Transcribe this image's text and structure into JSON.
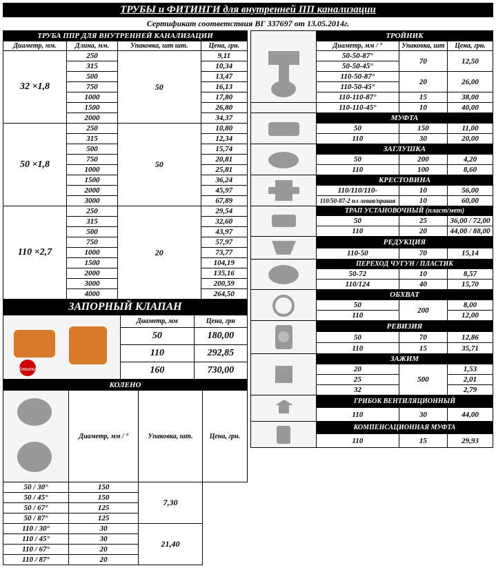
{
  "title": "ТРУБЫ и ФИТИНГИ для внутренней ПП канализации",
  "subtitle": "Сертификат соответствия ВГ 337697 от 13.05.2014г.",
  "pipes": {
    "header": "ТРУБА ППР ДЛЯ ВНУТРЕННЕЙ КАНАЛИЗАЦИИ",
    "cols": [
      "Диаметр, мм.",
      "Длина, мм.",
      "Упаковка, шт шт.",
      "Цена, грн."
    ],
    "groups": [
      {
        "dia": "32 ×1,8",
        "pack": "50",
        "rows": [
          [
            "250",
            "9,11"
          ],
          [
            "315",
            "10,34"
          ],
          [
            "500",
            "13,47"
          ],
          [
            "750",
            "16,13"
          ],
          [
            "1000",
            "17,80"
          ],
          [
            "1500",
            "26,80"
          ],
          [
            "2000",
            "34,37"
          ]
        ]
      },
      {
        "dia": "50 ×1,8",
        "pack": "50",
        "rows": [
          [
            "250",
            "10,80"
          ],
          [
            "315",
            "12,34"
          ],
          [
            "500",
            "15,74"
          ],
          [
            "750",
            "20,81"
          ],
          [
            "1000",
            "25,81"
          ],
          [
            "1500",
            "36,24"
          ],
          [
            "2000",
            "45,97"
          ],
          [
            "3000",
            "67,89"
          ]
        ]
      },
      {
        "dia": "110 ×2,7",
        "pack": "20",
        "rows": [
          [
            "250",
            "29,54"
          ],
          [
            "315",
            "32,60"
          ],
          [
            "500",
            "43,97"
          ],
          [
            "750",
            "57,97"
          ],
          [
            "1000",
            "73,77"
          ],
          [
            "1500",
            "104,19"
          ],
          [
            "2000",
            "135,16"
          ],
          [
            "3000",
            "200,59"
          ],
          [
            "4000",
            "264,50"
          ]
        ]
      }
    ]
  },
  "valve": {
    "title": "ЗАПОРНЫЙ КЛАПАН",
    "cols": [
      "Диаметр, мм",
      "Цена, грн"
    ],
    "rows": [
      [
        "50",
        "180,00"
      ],
      [
        "110",
        "292,85"
      ],
      [
        "160",
        "730,00"
      ]
    ]
  },
  "elbow": {
    "title": "КОЛЕНО",
    "cols": [
      "Диаметр, мм / °",
      "Упаковка, шт.",
      "Цена, грн."
    ],
    "groups": [
      {
        "price": "7,30",
        "rows": [
          [
            "50 / 30°",
            "150"
          ],
          [
            "50 / 45°",
            "150"
          ],
          [
            "50 / 67°",
            "125"
          ],
          [
            "50 / 87°",
            "125"
          ]
        ]
      },
      {
        "price": "21,40",
        "rows": [
          [
            "110 / 30°",
            "30"
          ],
          [
            "110 / 45°",
            "30"
          ],
          [
            "110 / 67°",
            "20"
          ],
          [
            "110 / 87°",
            "20"
          ]
        ]
      }
    ]
  },
  "right": {
    "tee": {
      "title": "ТРОЙНИК",
      "cols": [
        "Диаметр, мм / °",
        "Упаковка, шт",
        "Цена, грн."
      ],
      "groups": [
        {
          "pack": "70",
          "price": "12,50",
          "rows": [
            "50-50-87°",
            "50-50-45°"
          ]
        },
        {
          "pack": "20",
          "price": "26,00",
          "rows": [
            "110-50-87°",
            "110-50-45°"
          ]
        },
        {
          "pack": "15",
          "rows": [
            [
              "110-110-87°",
              "38,00"
            ],
            [
              "110-110-45°",
              "10",
              "40,00"
            ]
          ]
        }
      ]
    },
    "coupling": {
      "title": "МУФТА",
      "rows": [
        [
          "50",
          "150",
          "11,00"
        ],
        [
          "110",
          "30",
          "20,00"
        ]
      ]
    },
    "plug": {
      "title": "ЗАГЛУШКА",
      "rows": [
        [
          "50",
          "200",
          "4,20"
        ],
        [
          "110",
          "100",
          "8,60"
        ]
      ]
    },
    "cross": {
      "title": "КРЕСТОВИНА",
      "rows": [
        [
          "110/110/110-",
          "10",
          "56,00"
        ],
        [
          "110/50-87-2 пл левая/правая",
          "10",
          "60,00"
        ]
      ]
    },
    "trap": {
      "title": "ТРАП УСТАНОВОЧНЫЙ (пласт/мет)",
      "rows": [
        [
          "50",
          "25",
          "36,00 / 72,00"
        ],
        [
          "110",
          "20",
          "44,00 / 88,00"
        ]
      ]
    },
    "reducer": {
      "title": "РЕДУКЦИЯ",
      "rows": [
        [
          "110-50",
          "70",
          "15,14"
        ]
      ]
    },
    "castiron": {
      "title": "ПЕРЕХОД ЧУГУН / ПЛАСТИК",
      "rows": [
        [
          "50-72",
          "10",
          "8,57"
        ],
        [
          "110/124",
          "40",
          "15,70"
        ]
      ]
    },
    "clamp": {
      "title": "ОБХВАТ",
      "rows": [
        [
          "50",
          "200",
          "8,00"
        ],
        [
          "110",
          "",
          "12,00"
        ]
      ]
    },
    "revision": {
      "title": "РЕВИЗИЯ",
      "rows": [
        [
          "50",
          "70",
          "12,86"
        ],
        [
          "110",
          "15",
          "35,71"
        ]
      ]
    },
    "clip": {
      "title": "ЗАЖИМ",
      "rows": [
        [
          "20",
          "500",
          "1,53"
        ],
        [
          "25",
          "",
          "2,01"
        ],
        [
          "32",
          "",
          "2,79"
        ]
      ]
    },
    "vent": {
      "title": "ГРИБОК ВЕНТИЛЯЦИОННЫЙ",
      "rows": [
        [
          "110",
          "30",
          "44,00"
        ]
      ]
    },
    "comp": {
      "title": "КОМПЕНСАЦИОННАЯ МУФТА",
      "rows": [
        [
          "110",
          "15",
          "29,93"
        ]
      ]
    }
  }
}
